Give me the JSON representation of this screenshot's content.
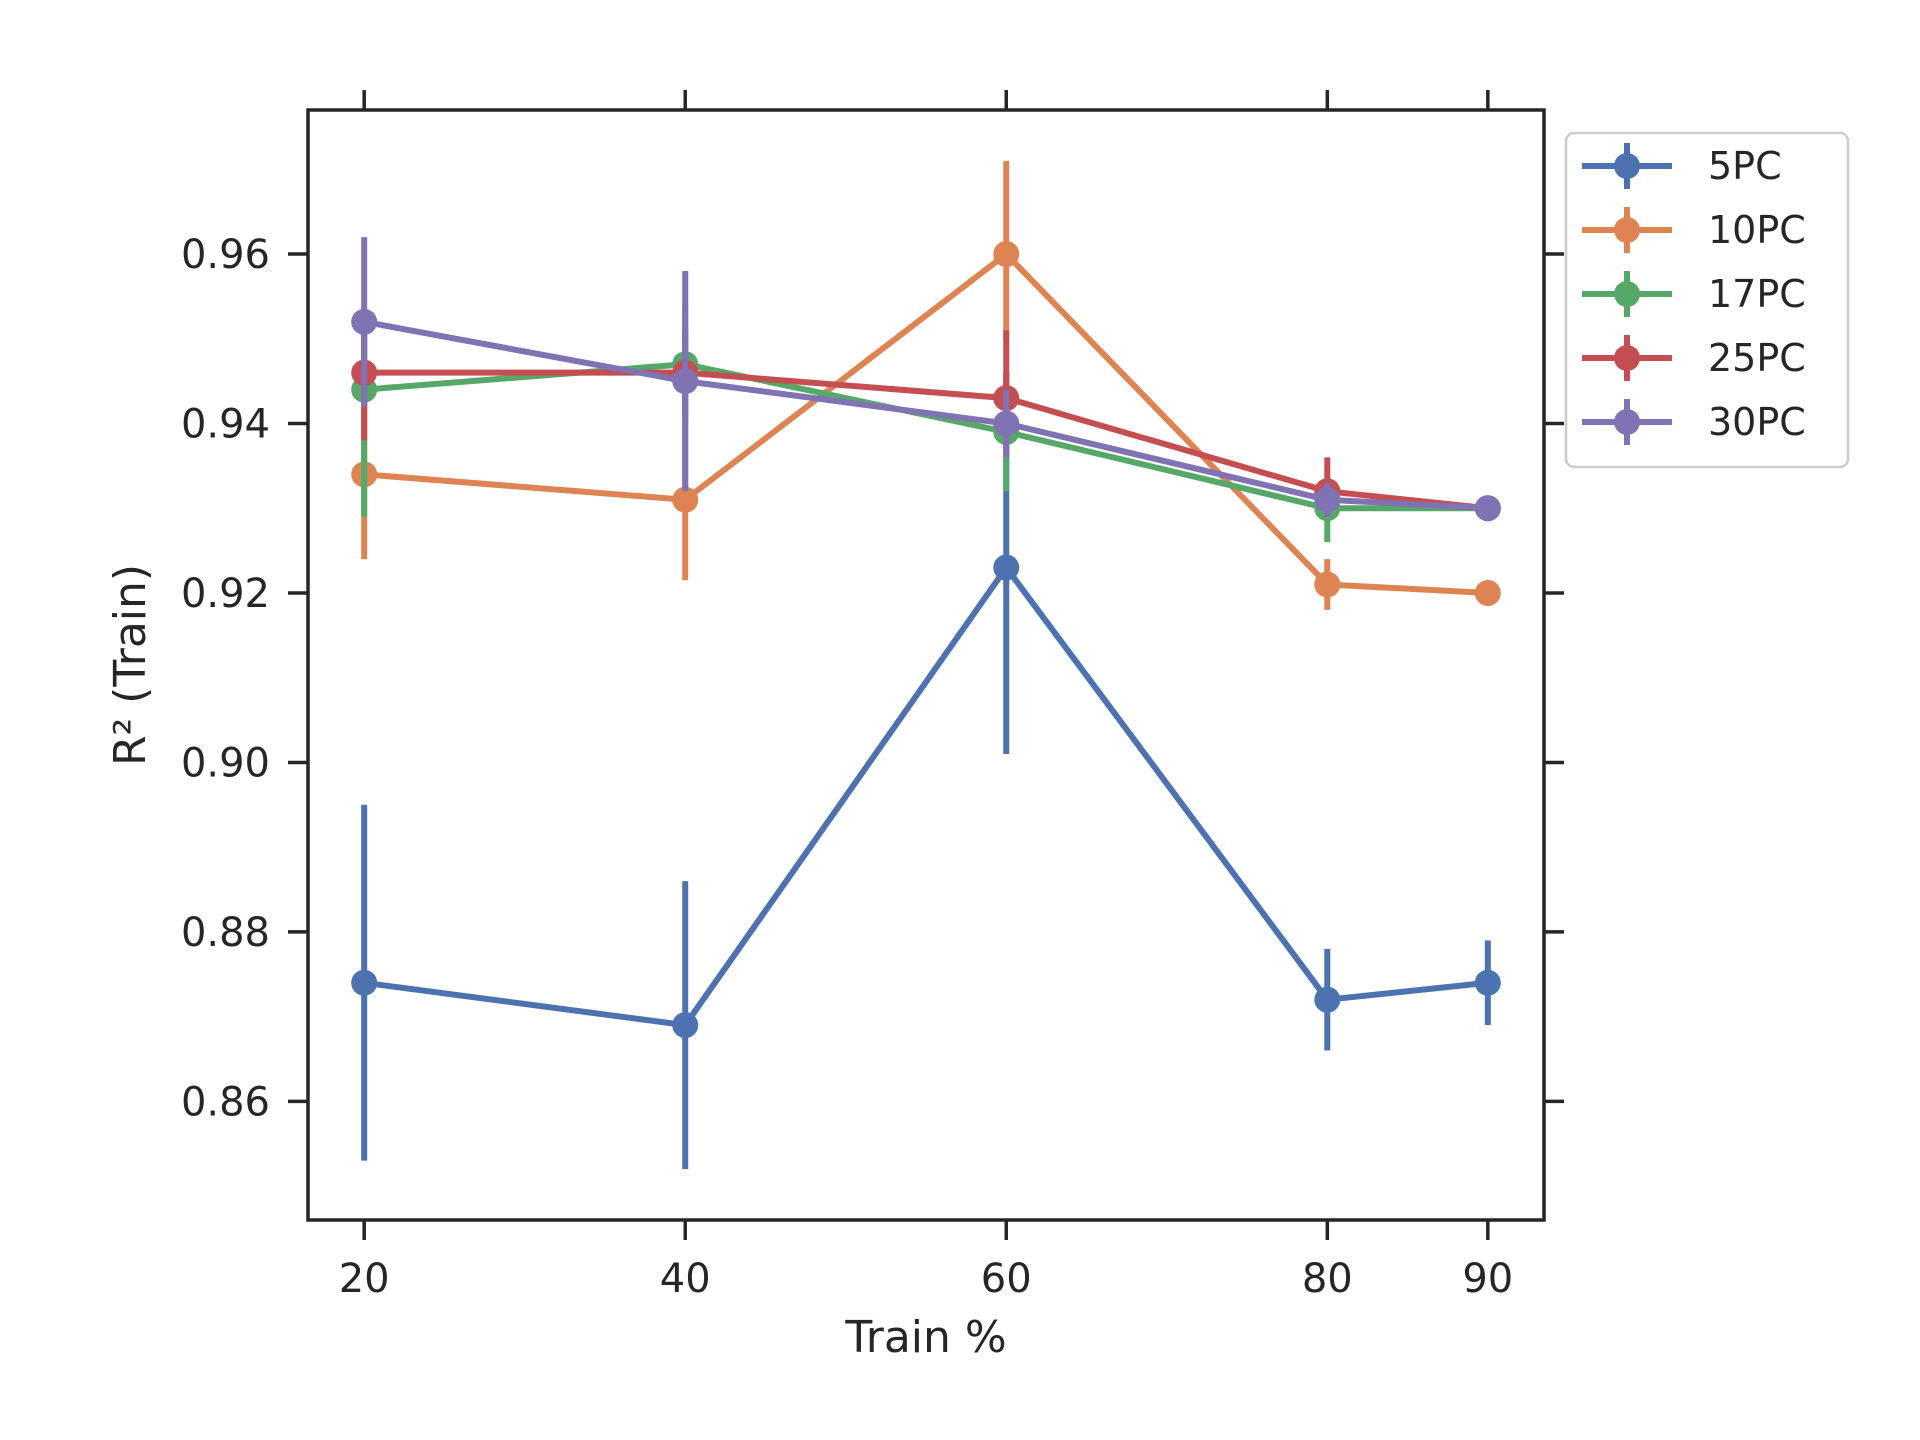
{
  "chart_data": {
    "type": "line",
    "xlabel": "Train %",
    "ylabel": "R² (Train)",
    "x": [
      20,
      40,
      60,
      80,
      90
    ],
    "x_tick_labels": [
      "20",
      "40",
      "60",
      "80",
      "90"
    ],
    "y_ticks": [
      0.86,
      0.88,
      0.9,
      0.92,
      0.94,
      0.96
    ],
    "y_tick_labels": [
      "0.86",
      "0.88",
      "0.90",
      "0.92",
      "0.94",
      "0.96"
    ],
    "xlim": [
      16.5,
      93.5
    ],
    "ylim": [
      0.846,
      0.977
    ],
    "grid": false,
    "legend_position": "outside-top-right",
    "series": [
      {
        "name": "5PC",
        "color": "#4c72b0",
        "values": [
          0.874,
          0.869,
          0.923,
          0.872,
          0.874
        ],
        "error_low": [
          0.853,
          0.852,
          0.901,
          0.866,
          0.869
        ],
        "error_high": [
          0.895,
          0.886,
          0.946,
          0.878,
          0.879
        ]
      },
      {
        "name": "10PC",
        "color": "#dd8452",
        "values": [
          0.934,
          0.931,
          0.96,
          0.921,
          0.92
        ],
        "error_low": [
          0.924,
          0.9215,
          0.95,
          0.918,
          0.92
        ],
        "error_high": [
          0.944,
          0.941,
          0.971,
          0.924,
          0.92
        ]
      },
      {
        "name": "17PC",
        "color": "#55a868",
        "values": [
          0.944,
          0.947,
          0.939,
          0.93,
          0.93
        ],
        "error_low": [
          0.929,
          0.94,
          0.932,
          0.926,
          0.93
        ],
        "error_high": [
          0.951,
          0.954,
          0.946,
          0.934,
          0.93
        ]
      },
      {
        "name": "25PC",
        "color": "#c44e52",
        "values": [
          0.946,
          0.946,
          0.943,
          0.932,
          0.93
        ],
        "error_low": [
          0.938,
          0.941,
          0.936,
          0.929,
          0.93
        ],
        "error_high": [
          0.953,
          0.951,
          0.951,
          0.936,
          0.93
        ]
      },
      {
        "name": "30PC",
        "color": "#8172b3",
        "values": [
          0.952,
          0.945,
          0.94,
          0.931,
          0.93
        ],
        "error_low": [
          0.942,
          0.932,
          0.936,
          0.929,
          0.93
        ],
        "error_high": [
          0.962,
          0.958,
          0.944,
          0.933,
          0.93
        ]
      }
    ]
  }
}
